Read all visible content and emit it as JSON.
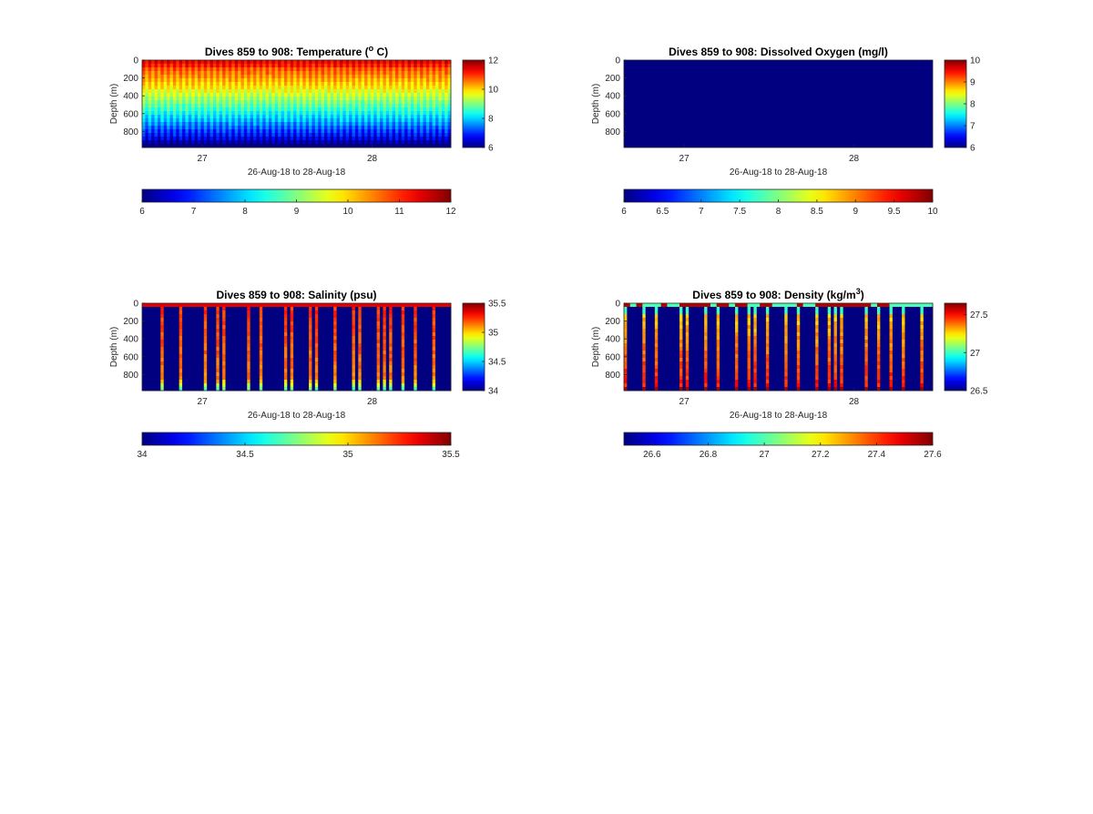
{
  "figure": {
    "xlabel": "26-Aug-18 to 28-Aug-18",
    "ylabel": "Depth (m)",
    "colormap": "jet"
  },
  "chart_data": [
    {
      "type": "heatmap",
      "title": "Dives 859 to 908: Temperature (",
      "title_sup": "o",
      "title_suffix": " C)",
      "xlabel": "26-Aug-18 to 28-Aug-18",
      "ylabel": "Depth (m)",
      "x_ticks": [
        "27",
        "28"
      ],
      "y_ticks": [
        0,
        200,
        400,
        600,
        800
      ],
      "ylim": [
        0,
        980
      ],
      "clim": [
        6,
        12
      ],
      "colorbar_ticks": [
        6,
        8,
        10,
        12
      ],
      "hcolorbar_ticks": [
        6,
        7,
        8,
        9,
        10,
        11,
        12
      ],
      "pattern": "temperature"
    },
    {
      "type": "heatmap",
      "title": "Dives 859 to 908: Dissolved Oxygen (mg/l)",
      "xlabel": "26-Aug-18 to 28-Aug-18",
      "ylabel": "Depth (m)",
      "x_ticks": [
        "27",
        "28"
      ],
      "y_ticks": [
        0,
        200,
        400,
        600,
        800
      ],
      "ylim": [
        0,
        980
      ],
      "clim": [
        6,
        10
      ],
      "colorbar_ticks": [
        6,
        7,
        8,
        9,
        10
      ],
      "hcolorbar_ticks": [
        "6",
        "6.5",
        "7",
        "7.5",
        "8",
        "8.5",
        "9",
        "9.5",
        "10"
      ],
      "pattern": "uniform",
      "uniform_value": 6
    },
    {
      "type": "heatmap",
      "title": "Dives 859 to 908: Salinity (psu)",
      "xlabel": "26-Aug-18 to 28-Aug-18",
      "ylabel": "Depth (m)",
      "x_ticks": [
        "27",
        "28"
      ],
      "y_ticks": [
        0,
        200,
        400,
        600,
        800
      ],
      "ylim": [
        0,
        980
      ],
      "clim": [
        34,
        35.5
      ],
      "colorbar_ticks": [
        "34",
        "34.5",
        "35",
        "35.5"
      ],
      "hcolorbar_ticks": [
        "34",
        "34.5",
        "35",
        "35.5"
      ],
      "pattern": "salinity"
    },
    {
      "type": "heatmap",
      "title": "Dives 859 to 908: Density (kg/m",
      "title_sup": "3",
      "title_suffix": ")",
      "xlabel": "26-Aug-18 to 28-Aug-18",
      "ylabel": "Depth (m)",
      "x_ticks": [
        "27",
        "28"
      ],
      "y_ticks": [
        0,
        200,
        400,
        600,
        800
      ],
      "ylim": [
        0,
        980
      ],
      "clim": [
        26.5,
        27.65
      ],
      "colorbar_ticks": [
        "26.5",
        "27",
        "27.5"
      ],
      "hcolorbar_ticks": [
        "26.6",
        "26.8",
        "27",
        "27.2",
        "27.4",
        "27.6"
      ],
      "pattern": "density"
    }
  ]
}
